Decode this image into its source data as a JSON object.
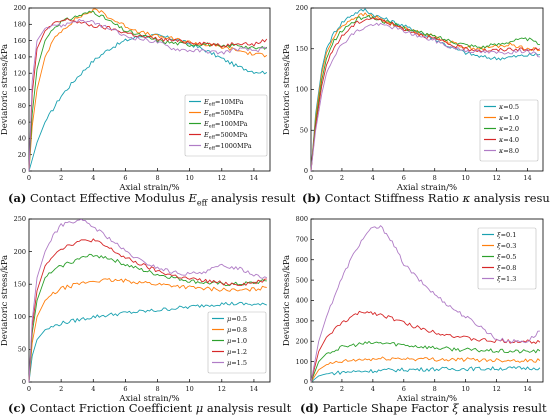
{
  "colors": {
    "blue": "#1f77b4",
    "orange": "#ff7f0e",
    "green": "#2ca02c",
    "red": "#d62728",
    "purple": "#b07cc6",
    "teal": "#1aa1b0",
    "axis": "#000000"
  },
  "captions": [
    {
      "tag": "(a)",
      "text": "Contact Effective Modulus ",
      "sym": "E",
      "sub": "eff",
      "tail": " analysis result"
    },
    {
      "tag": "(b)",
      "text": "Contact Stiffness Ratio ",
      "sym": "κ",
      "sub": "",
      "tail": " analysis result"
    },
    {
      "tag": "(c)",
      "text": "Contact Friction Coefficient ",
      "sym": "μ",
      "sub": "",
      "tail": " analysis result"
    },
    {
      "tag": "(d)",
      "text": "Particle Shape Factor ",
      "sym": "ξ",
      "sub": "",
      "tail": " analysis result"
    }
  ],
  "chart_data": [
    {
      "type": "line",
      "id": "a",
      "xlabel": "Axial strain/%",
      "ylabel": "Deviatoric stress/kPa",
      "xlim": [
        0,
        15
      ],
      "ylim": [
        0,
        200
      ],
      "xticks": [
        0,
        2,
        4,
        6,
        8,
        10,
        12,
        14
      ],
      "yticks": [
        0,
        20,
        40,
        60,
        80,
        100,
        120,
        140,
        160,
        180,
        200
      ],
      "legend_position": "lower-right",
      "series": [
        {
          "label": "E_eff = 10MPa",
          "sym": "E",
          "sub": "eff",
          "eq": "=10MPa",
          "color_key": "teal",
          "x": [
            0,
            0.5,
            1,
            2,
            3,
            4,
            5,
            6,
            7,
            8,
            9,
            10,
            11,
            12,
            13,
            14,
            14.8
          ],
          "y": [
            0,
            35,
            60,
            92,
            115,
            135,
            150,
            160,
            166,
            166,
            162,
            156,
            148,
            138,
            128,
            122,
            121
          ]
        },
        {
          "label": "E_eff = 50MPa",
          "sym": "E",
          "sub": "eff",
          "eq": "=50MPa",
          "color_key": "orange",
          "x": [
            0,
            0.2,
            0.5,
            1,
            1.5,
            2,
            3,
            4,
            4.5,
            5,
            6,
            7,
            8,
            9,
            10,
            11,
            12,
            13,
            14,
            14.8
          ],
          "y": [
            0,
            55,
            100,
            140,
            160,
            172,
            188,
            197,
            196,
            188,
            178,
            170,
            165,
            162,
            158,
            155,
            152,
            148,
            143,
            142
          ]
        },
        {
          "label": "E_eff = 100MPa",
          "sym": "E",
          "sub": "eff",
          "eq": "=100MPa",
          "color_key": "green",
          "x": [
            0,
            0.2,
            0.5,
            1,
            1.5,
            2,
            3,
            4,
            5,
            6,
            7,
            8,
            9,
            10,
            11,
            12,
            13,
            14,
            14.8
          ],
          "y": [
            0,
            70,
            125,
            160,
            175,
            183,
            190,
            196,
            184,
            172,
            166,
            160,
            157,
            155,
            156,
            152,
            155,
            150,
            152
          ]
        },
        {
          "label": "E_eff = 500MPa",
          "sym": "E",
          "sub": "eff",
          "eq": "=500MPa",
          "color_key": "red",
          "x": [
            0,
            0.2,
            0.5,
            1,
            1.5,
            2,
            2.5,
            3,
            4,
            5,
            6,
            7,
            8,
            9,
            10,
            11,
            12,
            13,
            14,
            14.8
          ],
          "y": [
            0,
            95,
            150,
            172,
            180,
            184,
            186,
            183,
            178,
            175,
            170,
            165,
            162,
            160,
            158,
            157,
            153,
            158,
            155,
            162
          ]
        },
        {
          "label": "E_eff = 1000MPa",
          "sym": "E",
          "sub": "eff",
          "eq": "=1000MPa",
          "color_key": "purple",
          "x": [
            0,
            0.2,
            0.5,
            1,
            1.5,
            2,
            3,
            4,
            5,
            6,
            7,
            8,
            9,
            10,
            11,
            12,
            13,
            14,
            14.8
          ],
          "y": [
            0,
            110,
            160,
            175,
            180,
            178,
            185,
            182,
            175,
            165,
            162,
            158,
            150,
            148,
            147,
            145,
            150,
            148,
            150
          ]
        }
      ]
    },
    {
      "type": "line",
      "id": "b",
      "xlabel": "Axial strain/%",
      "ylabel": "Deviatoric stress/kPa",
      "xlim": [
        0,
        15
      ],
      "ylim": [
        0,
        200
      ],
      "xticks": [
        0,
        2,
        4,
        6,
        8,
        10,
        12,
        14
      ],
      "yticks": [
        0,
        50,
        100,
        150,
        200
      ],
      "legend_position": "lower-right",
      "series": [
        {
          "label": "κ = 0.5",
          "sym": "κ",
          "sub": "",
          "eq": "=0.5",
          "color_key": "teal",
          "x": [
            0,
            0.3,
            0.7,
            1,
            1.5,
            2,
            2.5,
            3,
            3.5,
            4,
            5,
            6,
            7,
            8,
            9,
            10,
            11,
            12,
            13,
            14,
            14.8
          ],
          "y": [
            0,
            70,
            125,
            150,
            170,
            182,
            190,
            195,
            198,
            192,
            185,
            178,
            170,
            162,
            152,
            145,
            140,
            138,
            140,
            142,
            143
          ]
        },
        {
          "label": "κ = 1.0",
          "sym": "κ",
          "sub": "",
          "eq": "=1.0",
          "color_key": "orange",
          "x": [
            0,
            0.3,
            0.7,
            1,
            1.5,
            2,
            2.5,
            3,
            3.5,
            4,
            5,
            6,
            7,
            8,
            9,
            10,
            11,
            12,
            13,
            14,
            14.8
          ],
          "y": [
            0,
            65,
            120,
            145,
            165,
            178,
            185,
            190,
            192,
            190,
            182,
            175,
            170,
            165,
            158,
            152,
            150,
            153,
            155,
            150,
            148
          ]
        },
        {
          "label": "κ = 2.0",
          "sym": "κ",
          "sub": "",
          "eq": "=2.0",
          "color_key": "green",
          "x": [
            0,
            0.3,
            0.7,
            1,
            1.5,
            2,
            2.5,
            3,
            3.5,
            4,
            5,
            6,
            7,
            8,
            9,
            10,
            11,
            12,
            13,
            14,
            14.8
          ],
          "y": [
            0,
            60,
            112,
            138,
            160,
            172,
            180,
            186,
            190,
            188,
            182,
            176,
            170,
            165,
            160,
            155,
            152,
            155,
            160,
            162,
            155
          ]
        },
        {
          "label": "κ = 4.0",
          "sym": "κ",
          "sub": "",
          "eq": "=4.0",
          "color_key": "red",
          "x": [
            0,
            0.3,
            0.7,
            1,
            1.5,
            2,
            2.5,
            3,
            3.5,
            4,
            5,
            6,
            7,
            8,
            9,
            10,
            11,
            12,
            13,
            14,
            14.8
          ],
          "y": [
            0,
            55,
            105,
            130,
            152,
            165,
            175,
            182,
            186,
            188,
            182,
            175,
            168,
            162,
            155,
            150,
            148,
            148,
            150,
            148,
            150
          ]
        },
        {
          "label": "κ = 8.0",
          "sym": "κ",
          "sub": "",
          "eq": "=8.0",
          "color_key": "purple",
          "x": [
            0,
            0.3,
            0.7,
            1,
            1.5,
            2,
            2.5,
            3,
            3.5,
            4,
            5,
            6,
            7,
            8,
            9,
            10,
            11,
            12,
            13,
            14,
            14.8
          ],
          "y": [
            0,
            50,
            95,
            120,
            142,
            155,
            165,
            172,
            176,
            180,
            178,
            172,
            165,
            160,
            152,
            148,
            146,
            145,
            146,
            148,
            140
          ]
        }
      ]
    },
    {
      "type": "line",
      "id": "c",
      "xlabel": "Axial strain/%",
      "ylabel": "Deviatoric stress/kPa",
      "xlim": [
        0,
        15
      ],
      "ylim": [
        0,
        250
      ],
      "xticks": [
        0,
        2,
        4,
        6,
        8,
        10,
        12,
        14
      ],
      "yticks": [
        0,
        50,
        100,
        150,
        200,
        250
      ],
      "legend_position": "lower-right",
      "series": [
        {
          "label": "μ = 0.5",
          "sym": "μ",
          "sub": "",
          "eq": "=0.5",
          "color_key": "teal",
          "x": [
            0,
            0.2,
            0.5,
            1,
            1.5,
            2,
            3,
            4,
            5,
            6,
            7,
            8,
            9,
            10,
            11,
            12,
            13,
            14,
            14.8
          ],
          "y": [
            0,
            40,
            65,
            80,
            85,
            90,
            95,
            100,
            103,
            106,
            108,
            110,
            113,
            115,
            118,
            120,
            120,
            119,
            118
          ]
        },
        {
          "label": "μ = 0.8",
          "sym": "μ",
          "sub": "",
          "eq": "=0.8",
          "color_key": "orange",
          "x": [
            0,
            0.2,
            0.5,
            1,
            1.5,
            2,
            3,
            4,
            5,
            6,
            7,
            8,
            9,
            10,
            11,
            12,
            13,
            14,
            14.8
          ],
          "y": [
            0,
            60,
            100,
            125,
            135,
            143,
            150,
            155,
            156,
            155,
            153,
            150,
            148,
            145,
            143,
            142,
            140,
            142,
            145
          ]
        },
        {
          "label": "μ = 1.0",
          "sym": "μ",
          "sub": "",
          "eq": "=1.0",
          "color_key": "green",
          "x": [
            0,
            0.2,
            0.5,
            1,
            1.5,
            2,
            3,
            4,
            5,
            6,
            7,
            8,
            9,
            10,
            11,
            12,
            13,
            14,
            14.8
          ],
          "y": [
            0,
            75,
            125,
            160,
            170,
            178,
            188,
            195,
            190,
            180,
            172,
            165,
            160,
            155,
            152,
            150,
            150,
            152,
            155
          ]
        },
        {
          "label": "μ = 1.2",
          "sym": "μ",
          "sub": "",
          "eq": "=1.2",
          "color_key": "red",
          "x": [
            0,
            0.2,
            0.5,
            1,
            1.5,
            2,
            3,
            4,
            5,
            6,
            7,
            8,
            9,
            10,
            11,
            12,
            13,
            14,
            14.8
          ],
          "y": [
            0,
            85,
            140,
            178,
            195,
            205,
            215,
            218,
            205,
            190,
            180,
            170,
            163,
            158,
            155,
            152,
            150,
            152,
            158
          ]
        },
        {
          "label": "μ = 1.5",
          "sym": "μ",
          "sub": "",
          "eq": "=1.5",
          "color_key": "purple",
          "x": [
            0,
            0.2,
            0.5,
            1,
            1.5,
            2,
            2.5,
            3,
            3.5,
            4,
            5,
            6,
            7,
            8,
            9,
            10,
            11,
            12,
            13,
            14,
            14.8
          ],
          "y": [
            0,
            95,
            160,
            200,
            225,
            240,
            245,
            248,
            245,
            238,
            220,
            200,
            185,
            175,
            168,
            165,
            170,
            178,
            175,
            165,
            160
          ]
        }
      ]
    },
    {
      "type": "line",
      "id": "d",
      "xlabel": "Axial strain/%",
      "ylabel": "Deviatoric stress/kPa",
      "xlim": [
        0,
        15
      ],
      "ylim": [
        0,
        800
      ],
      "xticks": [
        0,
        2,
        4,
        6,
        8,
        10,
        12,
        14
      ],
      "yticks": [
        0,
        100,
        200,
        300,
        400,
        500,
        600,
        700,
        800
      ],
      "legend_position": "top-right",
      "series": [
        {
          "label": "ξ = 0.1",
          "sym": "ξ",
          "sub": "",
          "eq": "=0.1",
          "color_key": "teal",
          "x": [
            0,
            0.5,
            1,
            2,
            3,
            4,
            5,
            6,
            7,
            8,
            9,
            10,
            11,
            12,
            13,
            14,
            14.8
          ],
          "y": [
            0,
            30,
            40,
            48,
            52,
            55,
            58,
            60,
            62,
            63,
            64,
            65,
            65,
            66,
            67,
            68,
            70
          ]
        },
        {
          "label": "ξ = 0.3",
          "sym": "ξ",
          "sub": "",
          "eq": "=0.3",
          "color_key": "orange",
          "x": [
            0,
            0.5,
            1,
            2,
            3,
            4,
            5,
            6,
            7,
            8,
            9,
            10,
            11,
            12,
            13,
            14,
            14.8
          ],
          "y": [
            0,
            60,
            85,
            100,
            108,
            112,
            115,
            115,
            113,
            112,
            110,
            110,
            108,
            108,
            107,
            105,
            105
          ]
        },
        {
          "label": "ξ = 0.5",
          "sym": "ξ",
          "sub": "",
          "eq": "=0.5",
          "color_key": "green",
          "x": [
            0,
            0.5,
            1,
            2,
            3,
            4,
            5,
            6,
            7,
            8,
            9,
            10,
            11,
            12,
            13,
            14,
            14.8
          ],
          "y": [
            0,
            100,
            140,
            170,
            185,
            192,
            190,
            182,
            175,
            168,
            162,
            158,
            155,
            152,
            150,
            150,
            152
          ]
        },
        {
          "label": "ξ = 0.8",
          "sym": "ξ",
          "sub": "",
          "eq": "=0.8",
          "color_key": "red",
          "x": [
            0,
            0.5,
            1,
            2,
            3,
            3.5,
            4,
            5,
            6,
            7,
            8,
            9,
            10,
            11,
            12,
            13,
            14,
            14.8
          ],
          "y": [
            0,
            150,
            220,
            290,
            335,
            345,
            340,
            320,
            290,
            265,
            245,
            230,
            215,
            205,
            200,
            200,
            198,
            195
          ]
        },
        {
          "label": "ξ = 1.3",
          "sym": "ξ",
          "sub": "",
          "eq": "=1.3",
          "color_key": "purple",
          "x": [
            0,
            0.5,
            1,
            1.5,
            2,
            2.5,
            3,
            3.5,
            4,
            4.5,
            5,
            5.5,
            6,
            7,
            8,
            9,
            10,
            11,
            12,
            13,
            14,
            14.8
          ],
          "y": [
            0,
            200,
            320,
            420,
            510,
            590,
            660,
            720,
            755,
            760,
            720,
            650,
            580,
            500,
            430,
            370,
            320,
            270,
            210,
            200,
            200,
            250
          ]
        }
      ]
    }
  ]
}
